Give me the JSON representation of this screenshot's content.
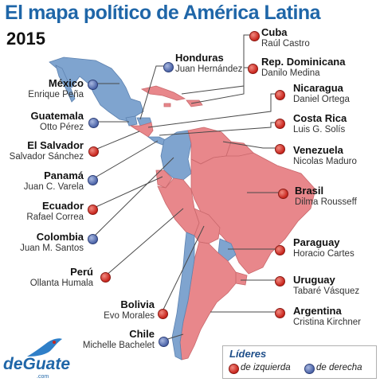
{
  "header": {
    "title": "El mapa político de América Latina",
    "year": "2015"
  },
  "colors": {
    "left": "#e8878b",
    "right": "#7fa4cf",
    "left_dot": "#c8241c",
    "right_dot": "#4c64a8",
    "title": "#1f66a8"
  },
  "countries": {
    "mexico": {
      "name": "México",
      "leader": "Enrique Peña"
    },
    "guatemala": {
      "name": "Guatemala",
      "leader": "Otto Pérez"
    },
    "el_salvador": {
      "name": "El Salvador",
      "leader": "Salvador Sánchez"
    },
    "panama": {
      "name": "Panamá",
      "leader": "Juan C. Varela"
    },
    "ecuador": {
      "name": "Ecuador",
      "leader": "Rafael Correa"
    },
    "colombia": {
      "name": "Colombia",
      "leader": "Juan M. Santos"
    },
    "peru": {
      "name": "Perú",
      "leader": "Ollanta Humala"
    },
    "bolivia": {
      "name": "Bolivia",
      "leader": "Evo Morales"
    },
    "chile": {
      "name": "Chile",
      "leader": "Michelle Bachelet"
    },
    "honduras": {
      "name": "Honduras",
      "leader": "Juan Hernández"
    },
    "cuba": {
      "name": "Cuba",
      "leader": "Raúl Castro"
    },
    "rep_dominicana": {
      "name": "Rep. Dominicana",
      "leader": "Danilo Medina"
    },
    "nicaragua": {
      "name": "Nicaragua",
      "leader": "Daniel Ortega"
    },
    "costa_rica": {
      "name": "Costa Rica",
      "leader": "Luis G. Solís"
    },
    "venezuela": {
      "name": "Venezuela",
      "leader": "Nicolas Maduro"
    },
    "brasil": {
      "name": "Brasil",
      "leader": "Dilma Rousseff"
    },
    "paraguay": {
      "name": "Paraguay",
      "leader": "Horacio Cartes"
    },
    "uruguay": {
      "name": "Uruguay",
      "leader": "Tabaré Vásquez"
    },
    "argentina": {
      "name": "Argentina",
      "leader": "Cristina Kirchner"
    }
  },
  "legend": {
    "title": "Líderes",
    "left": "de izquierda",
    "right": "de derecha"
  },
  "brand": {
    "name": "deGuate",
    "sub": ".com"
  }
}
